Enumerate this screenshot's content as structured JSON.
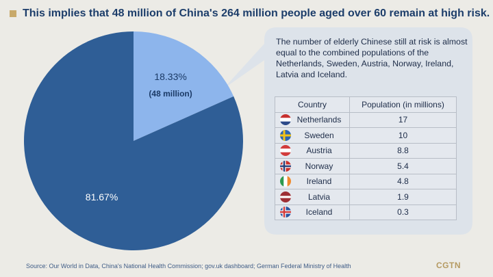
{
  "title": "This implies that 48 million of China's 264 million people aged over 60 remain at high risk.",
  "colors": {
    "background": "#ecebe6",
    "accent": "#c8a96a",
    "title": "#1c3d6a",
    "pie_large": "#2f5e96",
    "pie_small": "#8db5ec",
    "callout_bg": "#dde3ea"
  },
  "chart_data": {
    "type": "pie",
    "slices": [
      {
        "label": "81.67%",
        "sublabel": "",
        "value": 81.67,
        "color": "#2f5e96"
      },
      {
        "label": "18.33%",
        "sublabel": "(48 million)",
        "value": 18.33,
        "color": "#8db5ec"
      }
    ]
  },
  "callout": {
    "text": "The number of elderly Chinese still at risk is almost equal to the combined populations of the Netherlands, Sweden, Austria, Norway, Ireland, Latvia and Iceland."
  },
  "table": {
    "headers": [
      "Country",
      "Population (in millions)"
    ],
    "rows": [
      {
        "country": "Netherlands",
        "population": "17",
        "flag": "netherlands-flag"
      },
      {
        "country": "Sweden",
        "population": "10",
        "flag": "sweden-flag"
      },
      {
        "country": "Austria",
        "population": "8.8",
        "flag": "austria-flag"
      },
      {
        "country": "Norway",
        "population": "5.4",
        "flag": "norway-flag"
      },
      {
        "country": "Ireland",
        "population": "4.8",
        "flag": "ireland-flag"
      },
      {
        "country": "Latvia",
        "population": "1.9",
        "flag": "latvia-flag"
      },
      {
        "country": "Iceland",
        "population": "0.3",
        "flag": "iceland-flag"
      }
    ]
  },
  "source": "Source: Our World in Data, China's National Health Commission; gov.uk dashboard; German Federal Ministry of Health",
  "logo": "CGTN"
}
